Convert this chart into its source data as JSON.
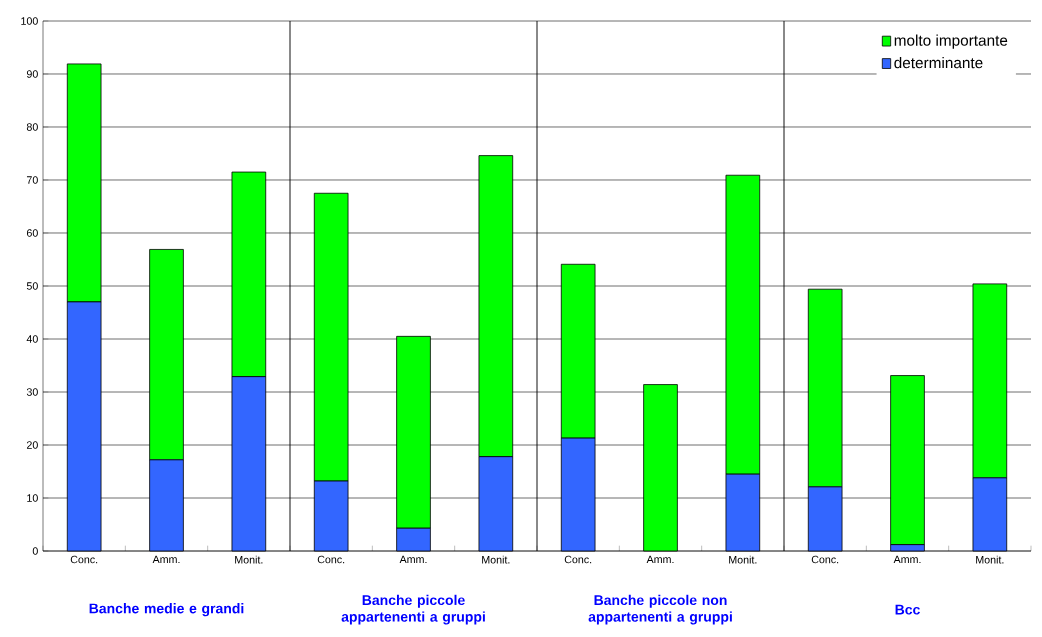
{
  "chart_data": {
    "type": "bar",
    "stacked": true,
    "categories": [
      "Conc.",
      "Amm.",
      "Monit.",
      "Conc.",
      "Amm.",
      "Monit.",
      "Conc.",
      "Amm.",
      "Monit.",
      "Conc.",
      "Amm.",
      "Monit."
    ],
    "series": [
      {
        "name": "determinante",
        "color": "#3366ff",
        "values": [
          47.0,
          17.2,
          32.9,
          13.2,
          4.3,
          17.8,
          21.3,
          0,
          14.5,
          12.1,
          1.2,
          13.8
        ]
      },
      {
        "name": "molto importante",
        "color": "#00ff00",
        "values": [
          44.9,
          39.7,
          38.6,
          54.3,
          36.2,
          56.8,
          32.8,
          31.4,
          56.4,
          37.3,
          31.9,
          36.6
        ]
      }
    ],
    "ylim": [
      0,
      100
    ],
    "yticks": [
      0,
      10,
      20,
      30,
      40,
      50,
      60,
      70,
      80,
      90,
      100
    ],
    "grid": "y",
    "legend": "top right",
    "annotations": [
      "Banche medie e grandi",
      "Banche piccole appartenenti a gruppi",
      "Banche piccole non appartenenti a gruppi",
      "Bcc"
    ]
  }
}
